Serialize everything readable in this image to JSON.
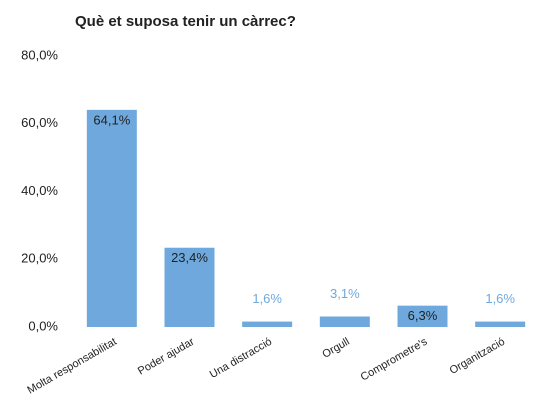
{
  "chart_data": {
    "type": "bar",
    "title": "Què et suposa tenir un càrrec?",
    "categories": [
      "Molta responsabilitat",
      "Poder ajudar",
      "Una distracció",
      "Orgull",
      "Comprometre's",
      "Organització"
    ],
    "values": [
      64.1,
      23.4,
      1.6,
      3.1,
      6.3,
      1.6
    ],
    "value_labels": [
      "64,1%",
      "23,4%",
      "1,6%",
      "3,1%",
      "6,3%",
      "1,6%"
    ],
    "color": "#6fa8dc",
    "ylim": [
      0,
      80
    ],
    "yticks": [
      {
        "value": 0,
        "label": "0,0%"
      },
      {
        "value": 20,
        "label": "20,0%"
      },
      {
        "value": 40,
        "label": "40,0%"
      },
      {
        "value": 60,
        "label": "60,0%"
      },
      {
        "value": 80,
        "label": "80,0%"
      }
    ],
    "grid": false
  }
}
